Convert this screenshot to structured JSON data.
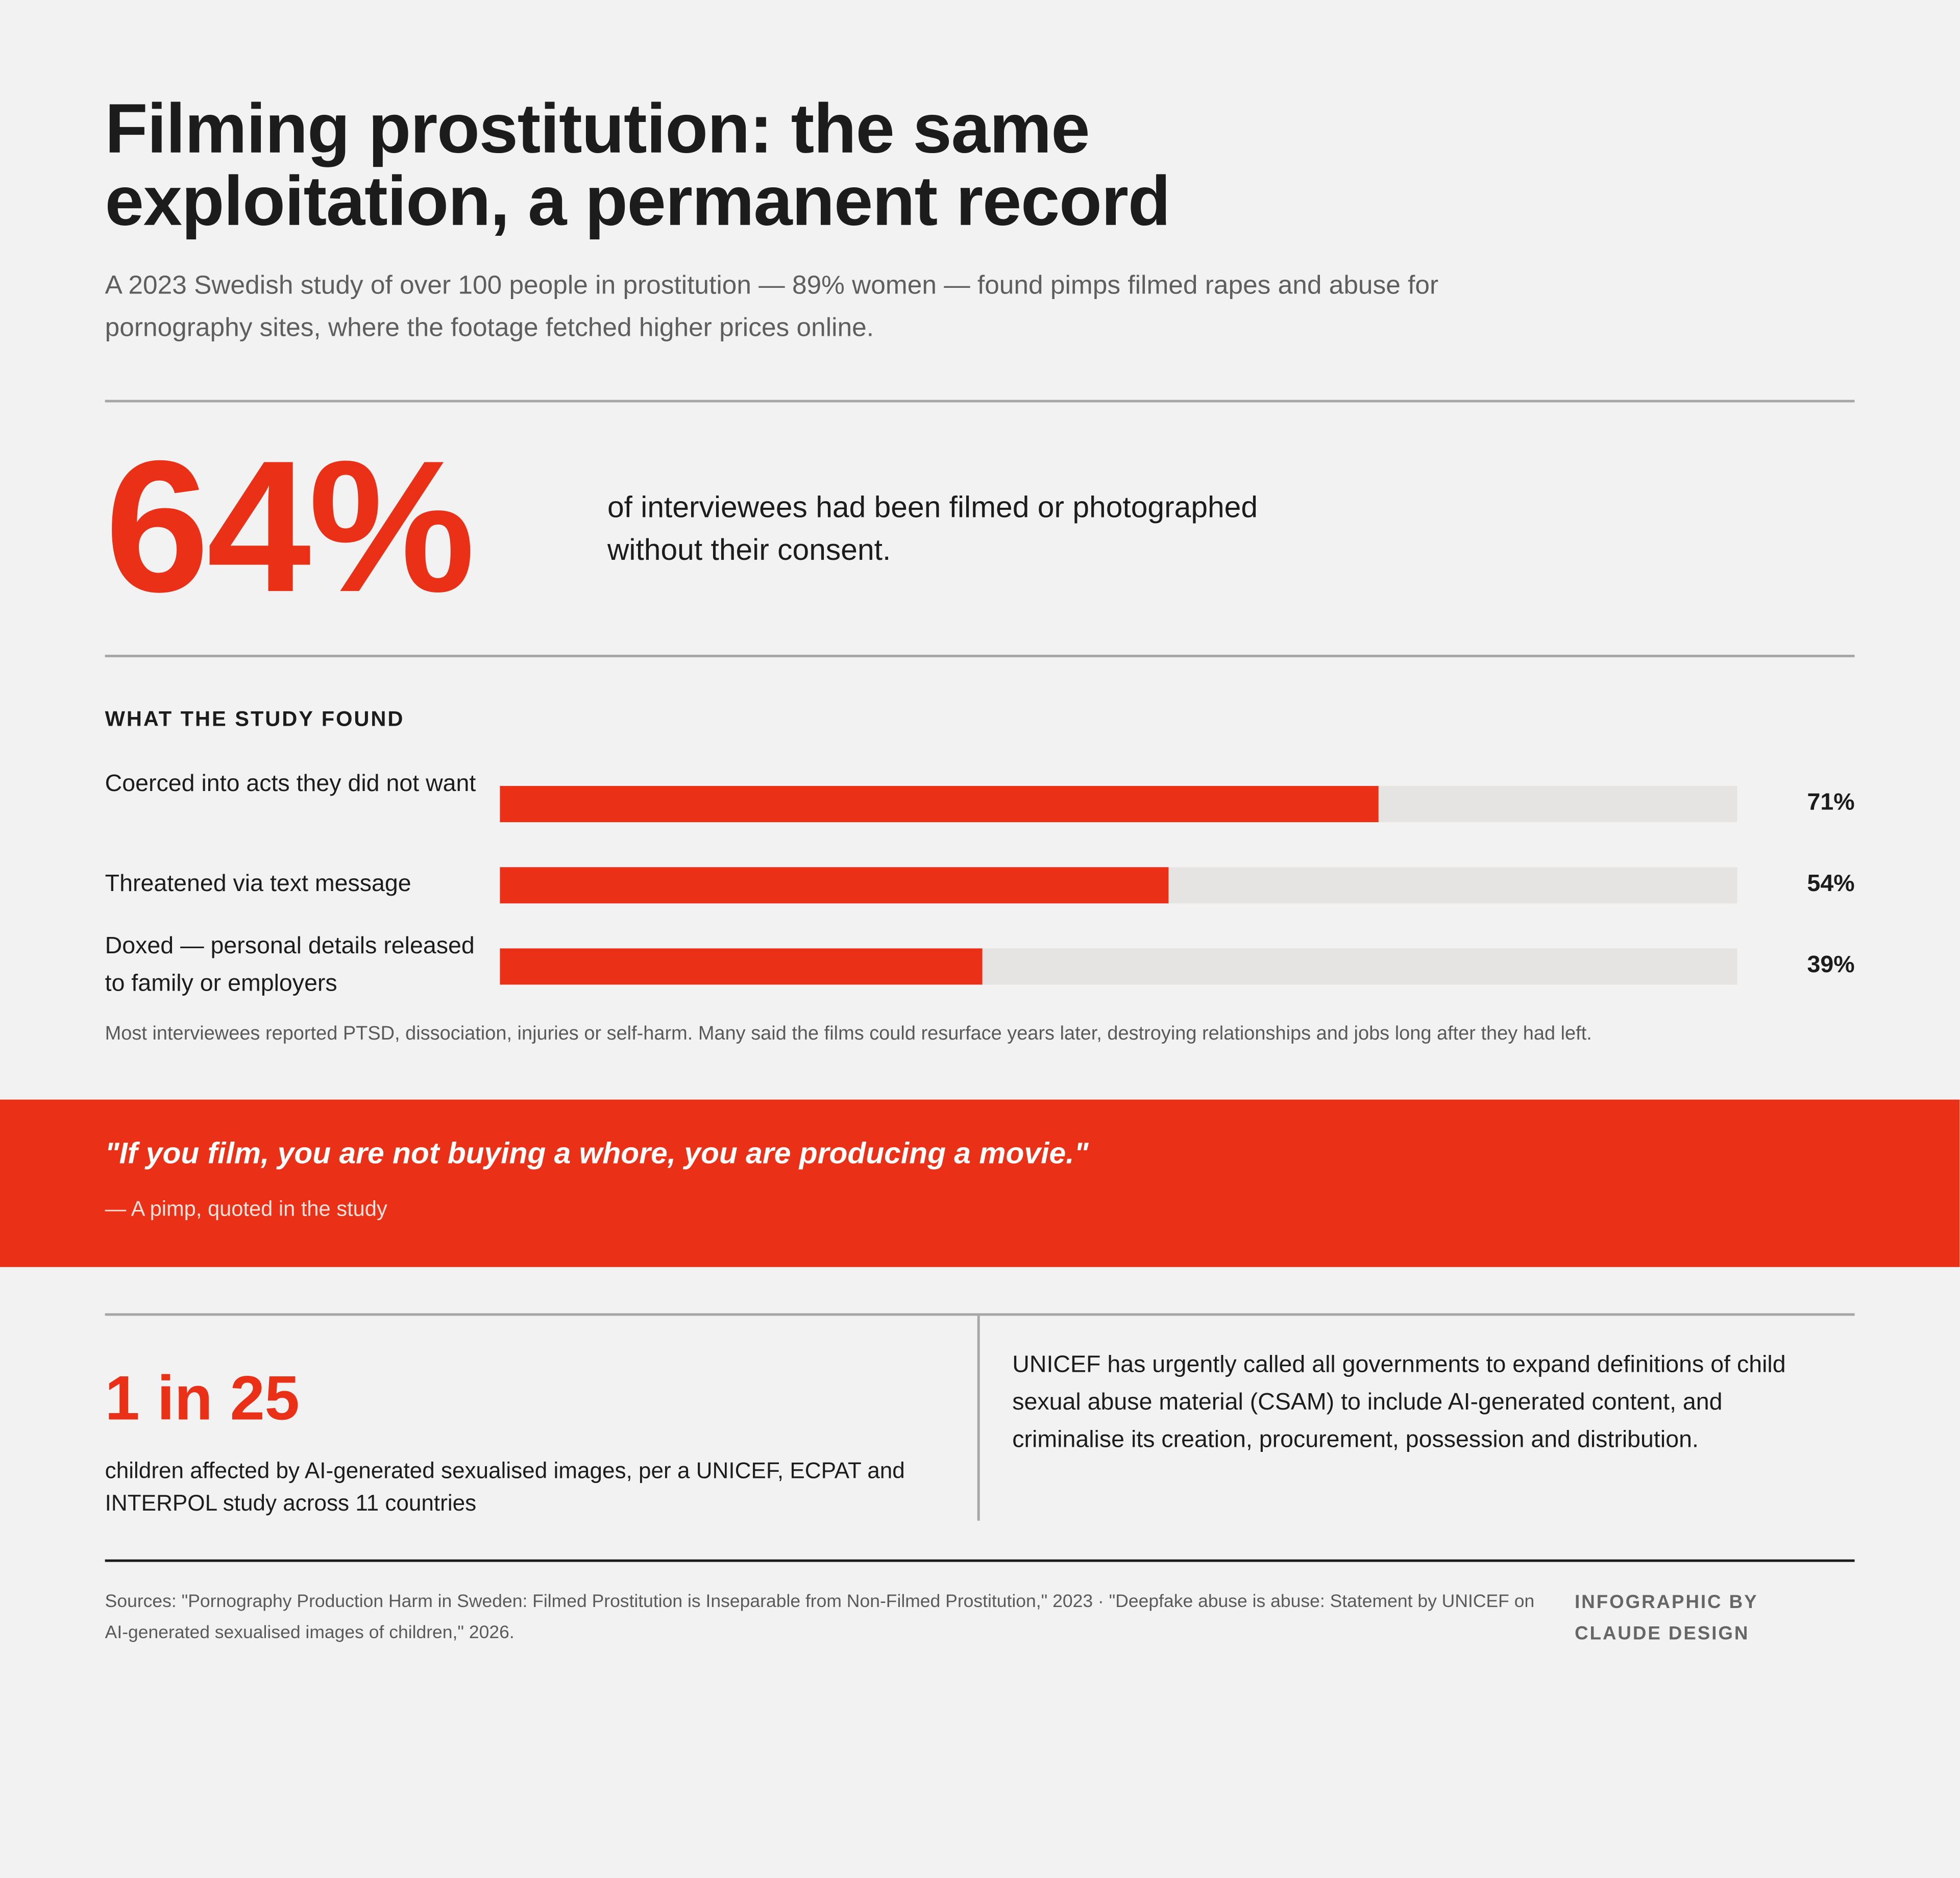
{
  "header": {
    "title": "Filming prostitution: the same exploitation, a permanent record",
    "subtitle": "A 2023 Swedish study of over 100 people in prostitution — 89% women — found pimps filmed rapes and abuse for pornography sites, where the footage fetched higher prices online."
  },
  "hero": {
    "figure": "64%",
    "text": "of interviewees had been filmed or photographed without their consent."
  },
  "chart_data": {
    "type": "bar",
    "orientation": "horizontal",
    "title": "WHAT THE STUDY FOUND",
    "categories": [
      "Coerced into acts they did not want",
      "Threatened via text message",
      "Doxed — personal details released to family or employers"
    ],
    "values": [
      71,
      54,
      39
    ],
    "value_labels": [
      "71%",
      "54%",
      "39%"
    ],
    "xlim": [
      0,
      100
    ],
    "color": "#ea3017"
  },
  "note": "Most interviewees reported PTSD, dissociation, injuries or self-harm. Many said the films could resurface years later, destroying relationships and jobs long after they had left.",
  "quote": {
    "text": "\"If you film, you are not buying a whore, you are producing a movie.\"",
    "attribution": "— A pimp, quoted in the study"
  },
  "stat": {
    "figure": "1 in 25",
    "text": "children affected by AI-generated sexualised images, per a UNICEF, ECPAT and INTERPOL study across 11 countries"
  },
  "unicef": "UNICEF has urgently called all governments to expand definitions of child sexual abuse material (CSAM) to include AI-generated content, and criminalise its creation, procurement, possession and distribution.",
  "footer": {
    "sources": "Sources: \"Pornography Production Harm in Sweden: Filmed Prostitution is Inseparable from Non-Filmed Prostitution,\" 2023 · \"Deepfake abuse is abuse: Statement by UNICEF on AI-generated sexualised images of children,\" 2026.",
    "credit": "INFOGRAPHIC BY CLAUDE DESIGN"
  }
}
